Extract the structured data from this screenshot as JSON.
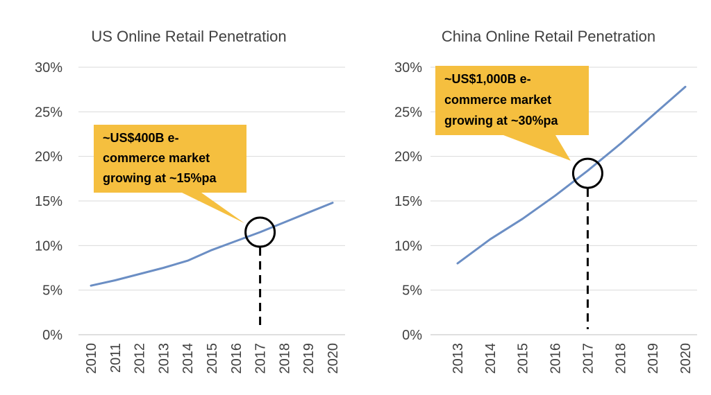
{
  "colors": {
    "series": "#6b8ec4",
    "callout": "#f5bf3f",
    "grid": "#d9d9d9",
    "text": "#404040"
  },
  "chart_data": [
    {
      "type": "line",
      "title": "US Online Retail Penetration",
      "xlabel": "",
      "ylabel": "",
      "x": [
        "2010",
        "2011",
        "2012",
        "2013",
        "2014",
        "2015",
        "2016",
        "2017",
        "2018",
        "2019",
        "2020"
      ],
      "yticks": [
        "0%",
        "5%",
        "10%",
        "15%",
        "20%",
        "25%",
        "30%"
      ],
      "ylim": [
        0,
        30
      ],
      "grid": true,
      "series": [
        {
          "values": [
            5.5,
            6.1,
            6.8,
            7.5,
            8.3,
            9.5,
            10.5,
            11.5,
            12.6,
            13.7,
            14.8
          ]
        }
      ],
      "annotation": {
        "lines": [
          "~US$400B e-",
          "commerce market",
          "growing at ~15%pa"
        ],
        "x": "2017",
        "y": 11.5
      }
    },
    {
      "type": "line",
      "title": "China Online Retail Penetration",
      "xlabel": "",
      "ylabel": "",
      "x": [
        "2013",
        "2014",
        "2015",
        "2016",
        "2017",
        "2018",
        "2019",
        "2020"
      ],
      "yticks": [
        "0%",
        "5%",
        "10%",
        "15%",
        "20%",
        "25%",
        "30%"
      ],
      "ylim": [
        0,
        30
      ],
      "grid": true,
      "series": [
        {
          "values": [
            8.0,
            10.7,
            13.0,
            15.6,
            18.4,
            21.4,
            24.6,
            27.8
          ]
        }
      ],
      "annotation": {
        "lines": [
          "~US$1,000B e-",
          "commerce market",
          "growing at ~30%pa"
        ],
        "x": "2017",
        "y": 18.1
      }
    }
  ]
}
